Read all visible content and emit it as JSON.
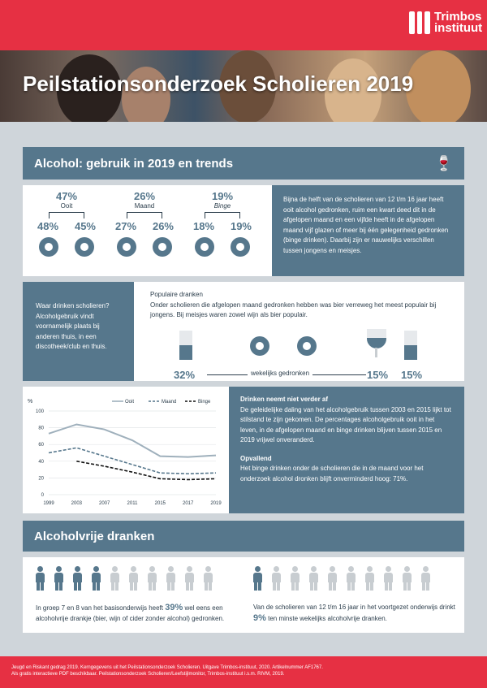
{
  "brand": {
    "line1": "Trimbos",
    "line2": "instituut",
    "color": "#e63043",
    "accent": "#56778c"
  },
  "title": "Peilstationsonderzoek Scholieren 2019",
  "section1": {
    "heading": "Alcohol: gebruik in 2019 en trends",
    "icon": "bottle-glass-icon"
  },
  "usage": [
    {
      "total": "47%",
      "label": "Ooit",
      "boys": "48%",
      "girls": "45%"
    },
    {
      "total": "26%",
      "label": "Maand",
      "boys": "27%",
      "girls": "26%"
    },
    {
      "total": "19%",
      "label": "Binge",
      "boys": "18%",
      "girls": "19%"
    }
  ],
  "usage_text": "Bijna de helft van de scholieren van 12 t/m 16 jaar heeft ooit alcohol gedronken, ruim een kwart deed dit in de afgelopen maand en een vijfde heeft in de afgelopen maand vijf glazen of meer bij één gelegenheid gedronken (binge drinken). Daarbij zijn er nauwelijks verschillen tussen jongens en meisjes.",
  "where": {
    "title": "Waar drinken scholieren?",
    "text": "Alcoholgebruik vindt voornamelijk plaats bij anderen thuis, in een discotheek/club en thuis."
  },
  "popular": {
    "title": "Populaire dranken",
    "text": "Onder scholieren die afgelopen maand gedronken hebben was bier verreweg het meest populair bij jongens. Bij meisjes waren zowel wijn als bier populair.",
    "beer": "32%",
    "wine": "15%",
    "beer_girls": "15%",
    "middle": "wekelijks gedronken"
  },
  "chart_data": {
    "type": "line",
    "x": [
      "1999",
      "2003",
      "2007",
      "2011",
      "2015",
      "2017",
      "2019"
    ],
    "ylabel": "%",
    "ylim": [
      0,
      100
    ],
    "yticks": [
      "0",
      "20",
      "40",
      "60",
      "80",
      "100"
    ],
    "series": [
      {
        "name": "Ooit",
        "values": [
          73,
          84,
          78,
          65,
          46,
          45,
          47
        ],
        "color": "#9fb0bc",
        "style": "solid"
      },
      {
        "name": "Maand",
        "values": [
          50,
          56,
          46,
          36,
          26,
          25,
          26
        ],
        "color": "#56778c",
        "style": "dashed"
      },
      {
        "name": "Binge",
        "values": [
          null,
          40,
          34,
          27,
          19,
          18,
          19
        ],
        "color": "#111111",
        "style": "dashed"
      }
    ]
  },
  "trend": {
    "title": "Drinken neemt niet verder af",
    "text": "De geleidelijke daling van het alcoholgebruik tussen 2003 en 2015 lijkt tot stilstand te zijn gekomen. De percentages alcoholgebruik ooit in het leven, in de afgelopen maand en binge drinken blijven tussen 2015 en 2019 vrijwel onveranderd.",
    "notable_title": "Opvallend",
    "notable_text": "Het binge drinken onder de scholieren die in de maand voor het onderzoek alcohol dronken blijft onverminderd hoog: 71%."
  },
  "section2": {
    "heading": "Alcoholvrije dranken"
  },
  "alcfree": {
    "left_pre": "In groep 7 en 8 van het basisonderwijs heeft ",
    "left_pct": "39%",
    "left_post": " wel eens een alcoholvrije drankje (bier, wijn of cider zonder alcohol) gedronken.",
    "right_pre": "Van de scholieren van 12 t/m 16 jaar in het voortgezet onderwijs drinkt ",
    "right_pct": "9%",
    "right_post": " ten minste wekelijks alcoholvrije dranken.",
    "left_filled": 4,
    "left_total": 10,
    "right_filled": 1,
    "right_total": 10
  },
  "footer": {
    "line1": "Jeugd en Riskant gedrag 2019. Kerngegevens uit het Peilstationsonderzoek Scholieren. Uitgave Trimbos-instituut, 2020. Artikelnummer AF1767.",
    "line2": "Als gratis interactieve PDF beschikbaar. Peilstationsonderzoek Scholieren/Leefstijlmonitor, Trimbos-instituut i.s.m. RIVM, 2019."
  }
}
